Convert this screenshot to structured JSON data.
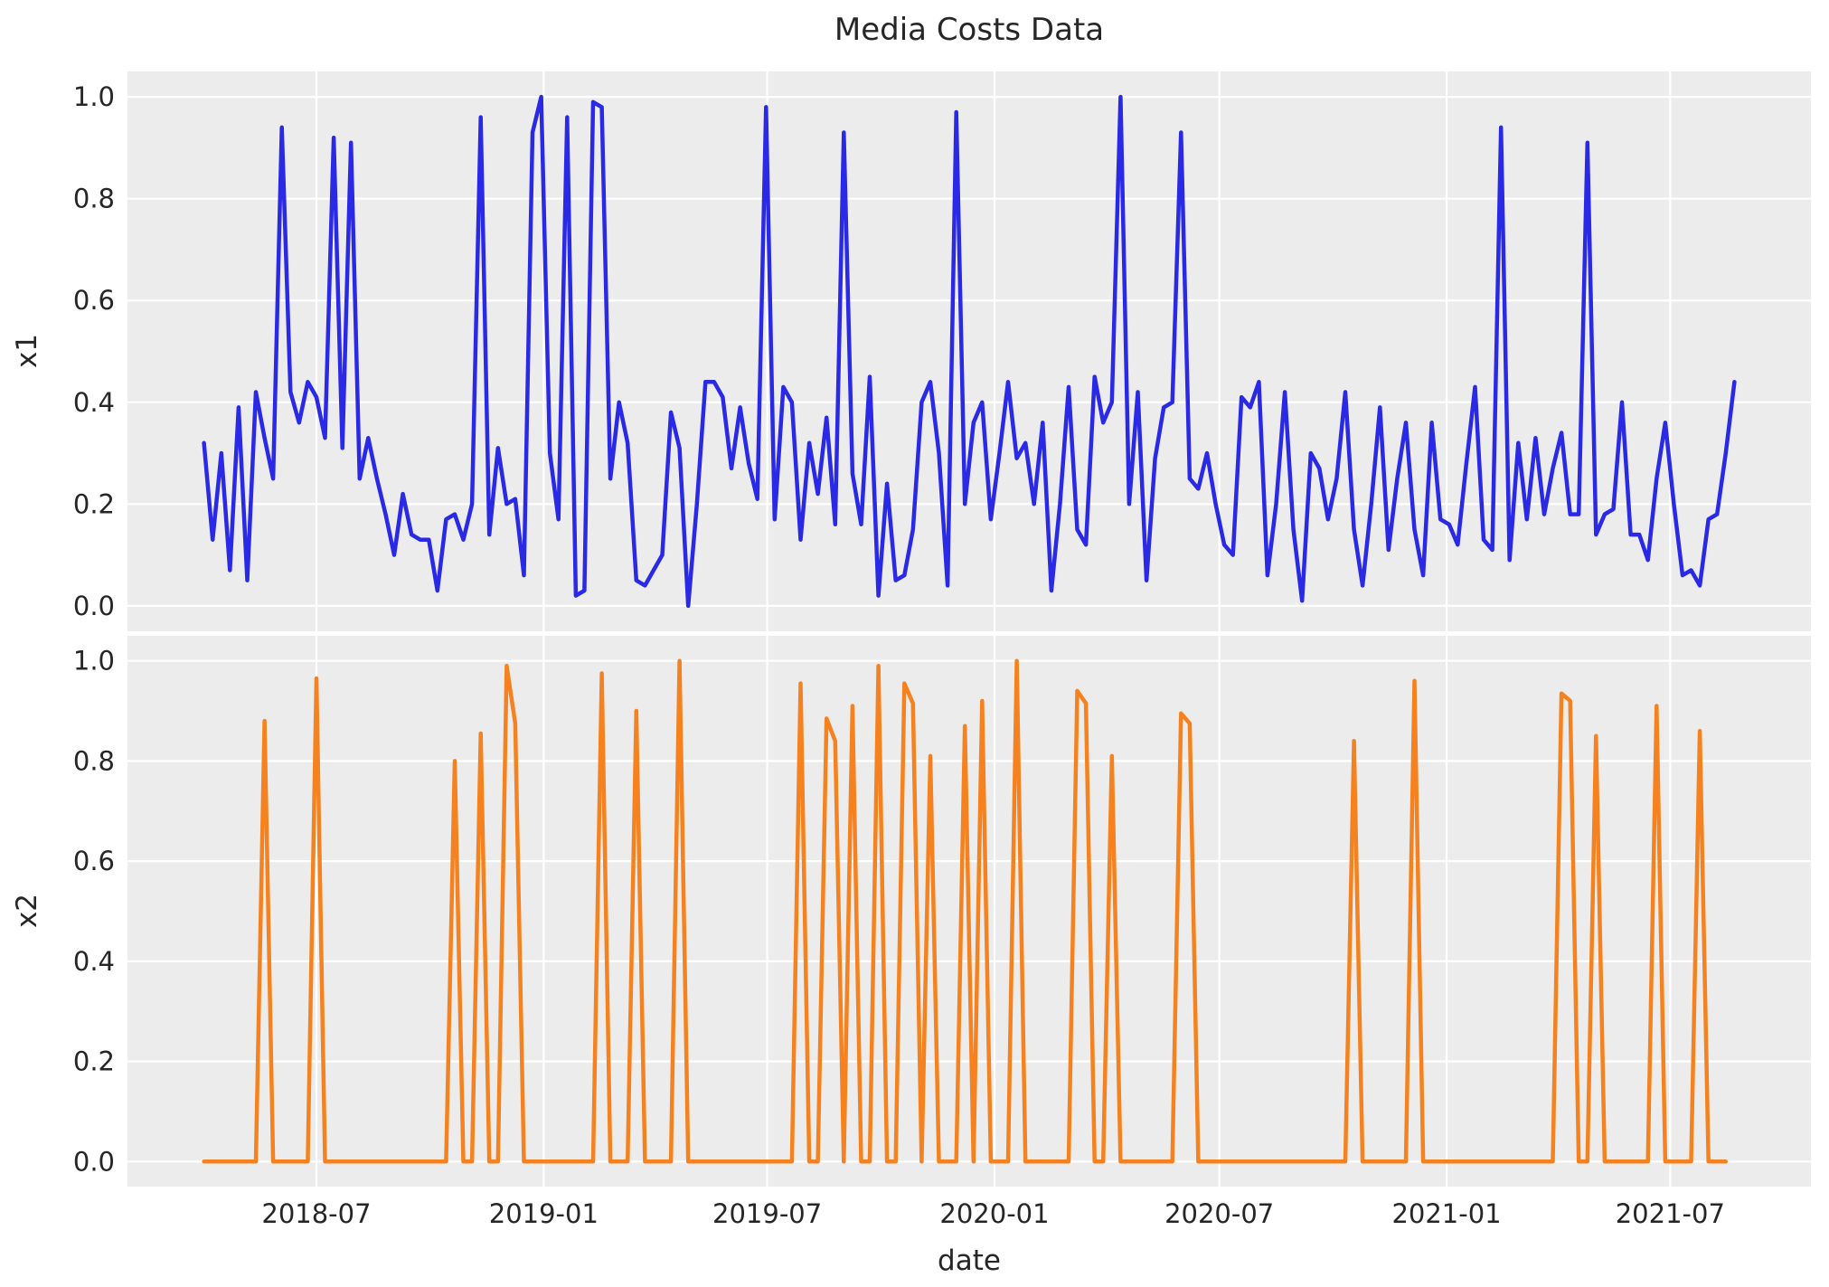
{
  "figure": {
    "title": "Media Costs Data",
    "xlabel": "date",
    "axes_background": "#ececec",
    "grid_color": "#ffffff",
    "text_color": "#262626"
  },
  "chart_data": [
    {
      "type": "line",
      "name": "x1",
      "ylabel": "x1",
      "color": "#2a2ae6",
      "ylim": [
        0.0,
        1.0
      ],
      "ytick_labels": [
        "1.0",
        "0.8",
        "0.6",
        "0.4",
        "0.2",
        "0.0"
      ],
      "x_start_date": "2018-04-01",
      "x_step_days": 7,
      "grid": true,
      "values": [
        0.32,
        0.13,
        0.3,
        0.07,
        0.39,
        0.05,
        0.42,
        0.33,
        0.25,
        0.94,
        0.42,
        0.36,
        0.44,
        0.41,
        0.33,
        0.92,
        0.31,
        0.91,
        0.25,
        0.33,
        0.25,
        0.18,
        0.1,
        0.22,
        0.14,
        0.13,
        0.13,
        0.03,
        0.17,
        0.18,
        0.13,
        0.2,
        0.96,
        0.14,
        0.31,
        0.2,
        0.21,
        0.06,
        0.93,
        1.0,
        0.3,
        0.17,
        0.96,
        0.02,
        0.03,
        0.99,
        0.98,
        0.25,
        0.4,
        0.32,
        0.05,
        0.04,
        0.07,
        0.1,
        0.38,
        0.31,
        0.0,
        0.2,
        0.44,
        0.44,
        0.41,
        0.27,
        0.39,
        0.28,
        0.21,
        0.98,
        0.17,
        0.43,
        0.4,
        0.13,
        0.32,
        0.22,
        0.37,
        0.16,
        0.93,
        0.26,
        0.16,
        0.45,
        0.02,
        0.24,
        0.05,
        0.06,
        0.15,
        0.4,
        0.44,
        0.3,
        0.04,
        0.97,
        0.2,
        0.36,
        0.4,
        0.17,
        0.3,
        0.44,
        0.29,
        0.32,
        0.2,
        0.36,
        0.03,
        0.2,
        0.43,
        0.15,
        0.12,
        0.45,
        0.36,
        0.4,
        1.0,
        0.2,
        0.42,
        0.05,
        0.29,
        0.39,
        0.4,
        0.93,
        0.25,
        0.23,
        0.3,
        0.2,
        0.12,
        0.1,
        0.41,
        0.39,
        0.44,
        0.06,
        0.2,
        0.42,
        0.15,
        0.01,
        0.3,
        0.27,
        0.17,
        0.25,
        0.42,
        0.15,
        0.04,
        0.2,
        0.39,
        0.11,
        0.25,
        0.36,
        0.15,
        0.06,
        0.36,
        0.17,
        0.16,
        0.12,
        0.28,
        0.43,
        0.13,
        0.11,
        0.94,
        0.09,
        0.32,
        0.17,
        0.33,
        0.18,
        0.27,
        0.34,
        0.18,
        0.18,
        0.91,
        0.14,
        0.18,
        0.19,
        0.4,
        0.14,
        0.14,
        0.09,
        0.25,
        0.36,
        0.2,
        0.06,
        0.07,
        0.04,
        0.17,
        0.18,
        0.3,
        0.44
      ]
    },
    {
      "type": "line",
      "name": "x2",
      "ylabel": "x2",
      "color": "#f5821f",
      "ylim": [
        0.0,
        1.0
      ],
      "ytick_labels": [
        "1.0",
        "0.8",
        "0.6",
        "0.4",
        "0.2",
        "0.0"
      ],
      "x_start_date": "2018-04-01",
      "x_step_days": 7,
      "grid": true,
      "values": [
        0,
        0,
        0,
        0,
        0,
        0,
        0,
        0.88,
        0,
        0,
        0,
        0,
        0,
        0.965,
        0,
        0,
        0,
        0,
        0,
        0,
        0,
        0,
        0,
        0,
        0,
        0,
        0,
        0,
        0,
        0.8,
        0,
        0,
        0.855,
        0,
        0,
        0.99,
        0.875,
        0,
        0,
        0,
        0,
        0,
        0,
        0,
        0,
        0,
        0.975,
        0,
        0,
        0,
        0.9,
        0,
        0,
        0,
        0,
        1.0,
        0,
        0,
        0,
        0,
        0,
        0,
        0,
        0,
        0,
        0,
        0,
        0,
        0,
        0.955,
        0,
        0,
        0.885,
        0.84,
        0,
        0.91,
        0,
        0,
        0.99,
        0,
        0,
        0.955,
        0.915,
        0,
        0.81,
        0,
        0,
        0,
        0.87,
        0,
        0.92,
        0,
        0,
        0,
        1.0,
        0,
        0,
        0,
        0,
        0,
        0,
        0.94,
        0.915,
        0,
        0,
        0.81,
        0,
        0,
        0,
        0,
        0,
        0,
        0,
        0.895,
        0.875,
        0,
        0,
        0,
        0,
        0,
        0,
        0,
        0,
        0,
        0,
        0,
        0,
        0,
        0,
        0,
        0,
        0,
        0,
        0.84,
        0,
        0,
        0,
        0,
        0,
        0,
        0.96,
        0,
        0,
        0,
        0,
        0,
        0,
        0,
        0,
        0,
        0,
        0,
        0,
        0,
        0,
        0,
        0,
        0.935,
        0.92,
        0,
        0,
        0.85,
        0,
        0,
        0,
        0,
        0,
        0,
        0.91,
        0,
        0,
        0,
        0,
        0.86,
        0,
        0,
        0
      ]
    }
  ],
  "x_axis": {
    "label": "date",
    "tick_labels": [
      "2018-07",
      "2019-01",
      "2019-07",
      "2020-01",
      "2020-07",
      "2021-01",
      "2021-07"
    ],
    "tick_dates": [
      "2018-07-01",
      "2019-01-01",
      "2019-07-01",
      "2020-01-01",
      "2020-07-01",
      "2021-01-01",
      "2021-07-01"
    ]
  }
}
